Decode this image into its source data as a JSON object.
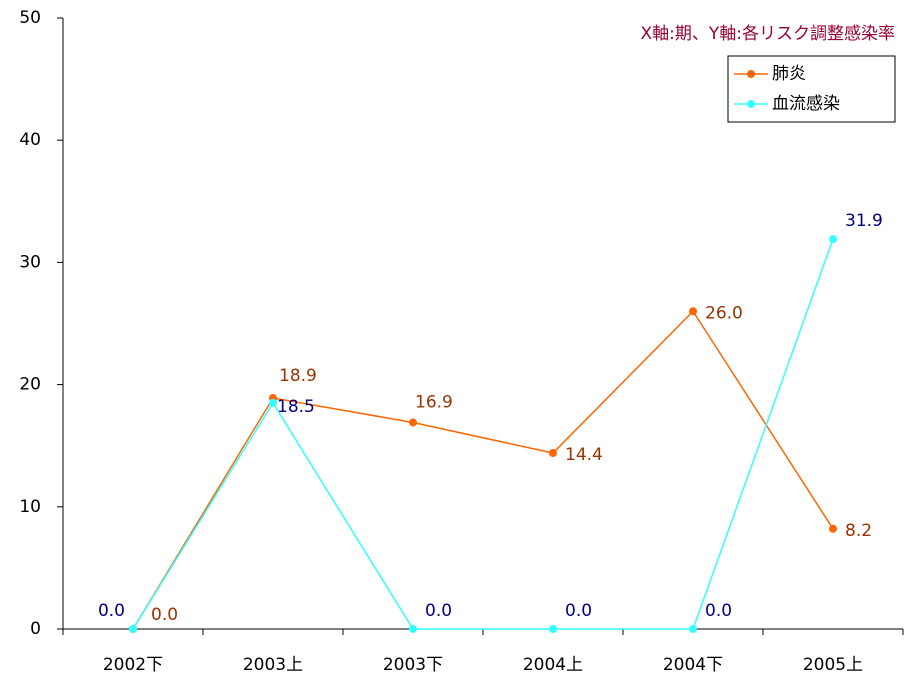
{
  "chart_data": {
    "type": "line",
    "annotation": "X軸:期、Y軸:各リスク調整感染率",
    "categories": [
      "2002下",
      "2003上",
      "2003下",
      "2004上",
      "2004下",
      "2005上"
    ],
    "series": [
      {
        "name": "肺炎",
        "color": "#ff6600",
        "label_color": "#993300",
        "values": [
          0,
          18.9,
          16.9,
          14.4,
          26,
          8.2
        ],
        "value_labels": [
          "0.0",
          "18.9",
          "16.9",
          "14.4",
          "26.0",
          "8.2"
        ]
      },
      {
        "name": "血流感染",
        "color": "#33ffff",
        "label_color": "#000080",
        "values": [
          0,
          18.5,
          0,
          0,
          0,
          31.9
        ],
        "value_labels": [
          "0.0",
          "18.5",
          "0.0",
          "0.0",
          "0.0",
          "31.9"
        ]
      }
    ],
    "ylim": [
      0,
      50
    ],
    "yticks": [
      0,
      10,
      20,
      30,
      40,
      50
    ],
    "grid": false,
    "legend": "top-right"
  }
}
